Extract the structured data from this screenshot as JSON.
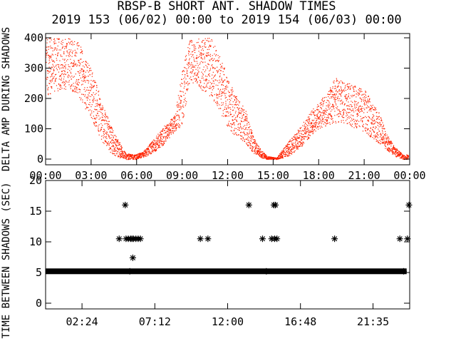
{
  "title_line1": "RBSP-B SHORT ANT. SHADOW TIMES",
  "title_line2": "2019 153 (06/02) 00:00 to 2019 154 (06/03) 00:00",
  "colors": {
    "data": "#ff2200",
    "axes": "#000000",
    "stars": "#000000"
  },
  "chart_data": [
    {
      "type": "scatter",
      "ylabel": "DELTA AMP DURING SHADOWS",
      "ylim": [
        0,
        400
      ],
      "xlim_hours": [
        0,
        24
      ],
      "yticks": [
        400,
        300,
        200,
        100,
        0
      ],
      "xticks": [
        "00:00",
        "03:00",
        "06:00",
        "09:00",
        "12:00",
        "15:00",
        "18:00",
        "21:00",
        "00:00"
      ],
      "envelope": {
        "x_hours": [
          0,
          1,
          2,
          3,
          3.7,
          4.3,
          4.8,
          5.3,
          5.9,
          6.4,
          7.0,
          7.8,
          8.5,
          9.0,
          9.5,
          10.0,
          11.0,
          11.8,
          12.4,
          13.2,
          13.7,
          14.2,
          14.6,
          15.2,
          16.0,
          16.8,
          17.5,
          18.0,
          18.5,
          19.0,
          20.0,
          21.0,
          22.0,
          22.5,
          23.0,
          23.6
        ],
        "lower": [
          210,
          230,
          220,
          130,
          60,
          20,
          5,
          0,
          0,
          5,
          20,
          50,
          90,
          110,
          260,
          240,
          200,
          120,
          80,
          50,
          20,
          5,
          0,
          0,
          10,
          40,
          80,
          100,
          110,
          120,
          110,
          90,
          50,
          30,
          10,
          0
        ],
        "upper": [
          400,
          400,
          400,
          300,
          190,
          110,
          60,
          20,
          15,
          25,
          60,
          110,
          150,
          300,
          400,
          400,
          400,
          300,
          220,
          160,
          70,
          30,
          10,
          5,
          60,
          110,
          160,
          190,
          220,
          270,
          250,
          230,
          150,
          80,
          40,
          15
        ]
      }
    },
    {
      "type": "scatter",
      "ylabel": "TIME BETWEEN SHADOWS (SEC)",
      "ylim": [
        0,
        20
      ],
      "xlim_hours": [
        0,
        24
      ],
      "yticks": [
        20,
        15,
        10,
        5,
        0
      ],
      "xticks": [
        "02:24",
        "07:12",
        "12:00",
        "16:48",
        "21:35"
      ],
      "xtick_hours": [
        2.4,
        7.2,
        12.0,
        16.8,
        21.583
      ],
      "baseline_value": 5.2,
      "baseline_start_hours": 0,
      "baseline_end_hours": 23.8,
      "points": [
        {
          "t": 4.85,
          "v": 10.5
        },
        {
          "t": 5.25,
          "v": 16.0
        },
        {
          "t": 5.3,
          "v": 10.5
        },
        {
          "t": 5.45,
          "v": 10.5
        },
        {
          "t": 5.6,
          "v": 10.5
        },
        {
          "t": 5.7,
          "v": 10.5
        },
        {
          "t": 5.75,
          "v": 7.4
        },
        {
          "t": 5.8,
          "v": 10.5
        },
        {
          "t": 5.95,
          "v": 10.5
        },
        {
          "t": 6.1,
          "v": 10.5
        },
        {
          "t": 6.25,
          "v": 10.5
        },
        {
          "t": 5.55,
          "v": 5.2
        },
        {
          "t": 10.2,
          "v": 10.5
        },
        {
          "t": 10.7,
          "v": 10.5
        },
        {
          "t": 13.4,
          "v": 16.0
        },
        {
          "t": 14.3,
          "v": 10.5
        },
        {
          "t": 14.55,
          "v": 5.2
        },
        {
          "t": 14.9,
          "v": 10.5
        },
        {
          "t": 15.05,
          "v": 16.0
        },
        {
          "t": 15.1,
          "v": 10.5
        },
        {
          "t": 15.15,
          "v": 16.0
        },
        {
          "t": 15.25,
          "v": 10.5
        },
        {
          "t": 19.05,
          "v": 10.5
        },
        {
          "t": 23.35,
          "v": 10.5
        },
        {
          "t": 23.6,
          "v": 5.2
        },
        {
          "t": 23.85,
          "v": 10.5
        },
        {
          "t": 23.95,
          "v": 16.0
        }
      ]
    }
  ]
}
